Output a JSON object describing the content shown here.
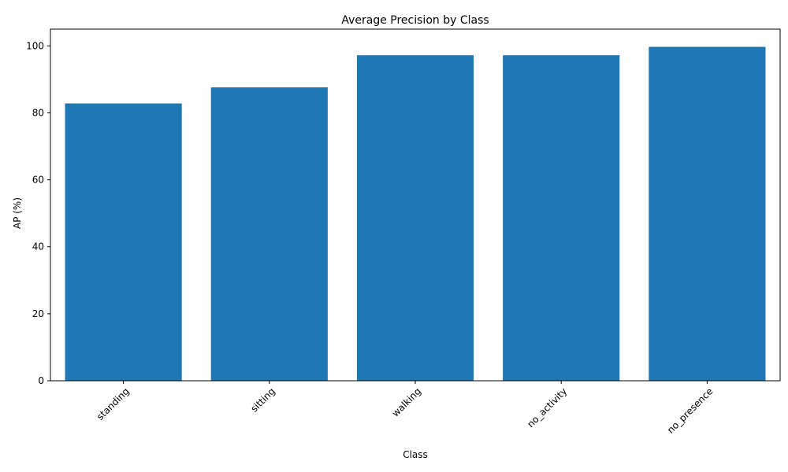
{
  "chart_data": {
    "type": "bar",
    "title": "Average Precision by Class",
    "xlabel": "Class",
    "ylabel": "AP (%)",
    "categories": [
      "standing",
      "sitting",
      "walking",
      "no_activity",
      "no_presence"
    ],
    "values": [
      82.8,
      87.6,
      97.2,
      97.2,
      99.7
    ],
    "ylim": [
      0,
      105
    ],
    "yticks": [
      "0",
      "20",
      "40",
      "60",
      "80",
      "100"
    ],
    "bar_color": "#1f77b4",
    "grid": false,
    "legend": "none",
    "xtick_rotation": 45
  }
}
